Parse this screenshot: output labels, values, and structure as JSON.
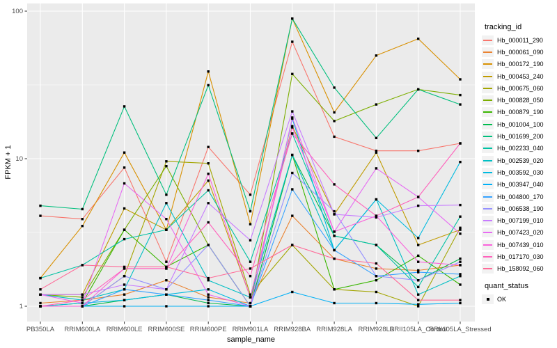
{
  "chart_data": {
    "type": "line",
    "title": "",
    "xlabel": "sample_name",
    "ylabel": "FPKM + 1",
    "scale_y": "log10",
    "ylim": [
      1,
      100
    ],
    "grid": "major-and-minor-white-on-gray",
    "legend_position": "right",
    "legend_title": "tracking_id",
    "quant_legend": {
      "title": "quant_status",
      "items": [
        {
          "label": "OK",
          "marker": "black-square"
        }
      ]
    },
    "y_ticks": [
      {
        "value": 100,
        "label": "100"
      },
      {
        "value": 10,
        "label": "10"
      },
      {
        "value": 1,
        "label": "1"
      }
    ],
    "categories": [
      "PB350LA",
      "RRIM600LA",
      "RRIM600LE",
      "RRIM600SE",
      "RRIM600PE",
      "RRIM901LA",
      "RRIM928BA",
      "RRIM928LA",
      "RRIM928LB",
      "RRII105LA_Control",
      "RRII105LA_Stressed"
    ],
    "series": [
      {
        "name": "Hb_000011_290",
        "color": "#F8766D",
        "values": [
          4.1,
          3.9,
          8.7,
          2.0,
          12.0,
          5.7,
          62,
          14.1,
          11.3,
          11.3,
          12.7
        ]
      },
      {
        "name": "Hb_000061_090",
        "color": "#EA8331",
        "values": [
          1.05,
          1.1,
          1.2,
          1.5,
          1.15,
          1.05,
          4.1,
          2.1,
          1.8,
          1.75,
          1.9
        ]
      },
      {
        "name": "Hb_000172_190",
        "color": "#D89000",
        "values": [
          1.55,
          3.5,
          11.0,
          3.3,
          39.0,
          3.6,
          89.0,
          20.6,
          50.0,
          65.0,
          34.5
        ]
      },
      {
        "name": "Hb_000453_240",
        "color": "#C09B00",
        "values": [
          1.2,
          1.2,
          4.6,
          3.3,
          7.1,
          1.15,
          16.6,
          4.2,
          11.0,
          2.6,
          3.3
        ]
      },
      {
        "name": "Hb_000675_060",
        "color": "#A3A500",
        "values": [
          1.0,
          1.0,
          1.6,
          9.6,
          9.3,
          1.2,
          2.6,
          1.3,
          1.25,
          1.0,
          3.4
        ]
      },
      {
        "name": "Hb_000828_050",
        "color": "#7CAE00",
        "values": [
          1.2,
          1.15,
          3.3,
          8.9,
          2.6,
          1.0,
          37.5,
          18.0,
          23.3,
          29.5,
          27.0
        ]
      },
      {
        "name": "Hb_000879_190",
        "color": "#39B600",
        "values": [
          1.0,
          1.05,
          3.3,
          1.85,
          2.6,
          1.0,
          10.6,
          1.3,
          1.5,
          2.2,
          1.4
        ]
      },
      {
        "name": "Hb_001004_100",
        "color": "#00BB4E",
        "values": [
          1.0,
          1.0,
          1.1,
          1.2,
          1.05,
          1.0,
          10.6,
          3.0,
          2.6,
          1.5,
          2.1
        ]
      },
      {
        "name": "Hb_001699_200",
        "color": "#00BF7D",
        "values": [
          4.8,
          4.55,
          22.6,
          5.7,
          31.5,
          4.4,
          89.0,
          30.3,
          13.8,
          29.5,
          23.3
        ]
      },
      {
        "name": "Hb_002233_040",
        "color": "#00C1A3",
        "values": [
          1.55,
          1.9,
          2.85,
          3.3,
          6.1,
          2.0,
          14.8,
          3.0,
          2.6,
          1.35,
          4.05
        ]
      },
      {
        "name": "Hb_002539_020",
        "color": "#00BFC4",
        "values": [
          1.2,
          1.1,
          1.3,
          5.0,
          1.5,
          1.15,
          10.6,
          2.4,
          5.3,
          1.2,
          1.6
        ]
      },
      {
        "name": "Hb_003592_030",
        "color": "#00BAE0",
        "values": [
          1.0,
          1.05,
          1.1,
          1.2,
          1.3,
          1.0,
          18.7,
          2.4,
          5.3,
          2.9,
          9.5
        ]
      },
      {
        "name": "Hb_003947_040",
        "color": "#00B0F6",
        "values": [
          1.0,
          1.0,
          1.0,
          1.0,
          1.0,
          1.0,
          1.25,
          1.05,
          1.05,
          1.03,
          1.05
        ]
      },
      {
        "name": "Hb_004800_170",
        "color": "#35A2FF",
        "values": [
          1.0,
          1.0,
          1.3,
          1.2,
          1.1,
          1.0,
          6.2,
          2.4,
          1.6,
          1.7,
          1.65
        ]
      },
      {
        "name": "Hb_006538_190",
        "color": "#9590FF",
        "values": [
          1.0,
          1.0,
          1.6,
          1.3,
          2.6,
          1.0,
          8.0,
          4.4,
          1.6,
          1.5,
          2.0
        ]
      },
      {
        "name": "Hb_007199_010",
        "color": "#C77CFF",
        "values": [
          1.2,
          1.2,
          1.4,
          1.3,
          5.0,
          2.8,
          20.9,
          4.2,
          4.0,
          4.8,
          4.85
        ]
      },
      {
        "name": "Hb_007423_020",
        "color": "#E76BF3",
        "values": [
          1.2,
          1.05,
          6.8,
          3.9,
          1.2,
          1.0,
          19.0,
          3.2,
          8.6,
          5.5,
          3.1
        ]
      },
      {
        "name": "Hb_007439_010",
        "color": "#FA62DB",
        "values": [
          1.0,
          1.0,
          1.8,
          1.8,
          7.9,
          1.15,
          16.3,
          3.2,
          4.1,
          2.0,
          1.9
        ]
      },
      {
        "name": "Hb_017170_030",
        "color": "#FF62BC",
        "values": [
          1.0,
          1.1,
          1.8,
          1.8,
          3.7,
          1.6,
          14.8,
          6.7,
          4.1,
          5.5,
          12.7
        ]
      },
      {
        "name": "Hb_158092_060",
        "color": "#FF6A98",
        "values": [
          1.3,
          1.9,
          1.85,
          1.85,
          1.55,
          1.8,
          2.6,
          2.1,
          1.95,
          1.1,
          1.1
        ]
      }
    ],
    "colors": {
      "panel_bg": "#EBEBEB",
      "gridline": "#FFFFFF",
      "tick_text": "#4D4D4D",
      "tick_mark": "#333333",
      "point": "#000000",
      "legend_key_bg": "#F2F2F2"
    }
  }
}
